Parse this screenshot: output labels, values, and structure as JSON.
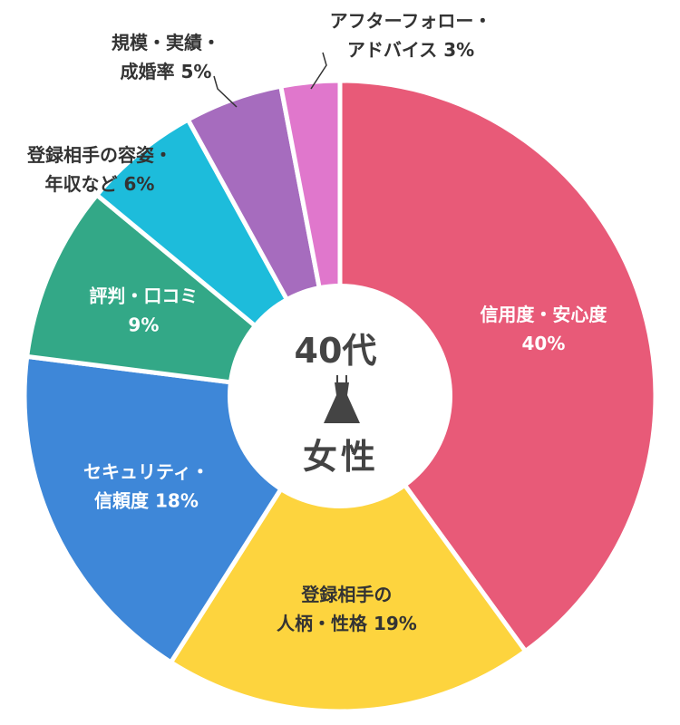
{
  "center": {
    "age": "40代",
    "gender": "女性",
    "icon": "dress-icon"
  },
  "chart_data": {
    "type": "pie",
    "start": "top, clockwise",
    "slices": [
      {
        "label": [
          "信用度・安心度",
          "40%"
        ],
        "value": 40,
        "color": "#E85A78"
      },
      {
        "label": [
          "登録相手の",
          "人柄・性格 19%"
        ],
        "value": 19,
        "color": "#FDD43E"
      },
      {
        "label": [
          "セキュリティ・",
          "信頼度 18%"
        ],
        "value": 18,
        "color": "#3E87D8"
      },
      {
        "label": [
          "評判・口コミ",
          "9%"
        ],
        "value": 9,
        "color": "#33A887"
      },
      {
        "label": [
          "登録相手の容姿・",
          "年収など 6%"
        ],
        "value": 6,
        "color": "#1DBCDB"
      },
      {
        "label": [
          "規模・実績・",
          "成婚率 5%"
        ],
        "value": 5,
        "color": "#A66CBE"
      },
      {
        "label": [
          "アフターフォロー・",
          "アドバイス 3%"
        ],
        "value": 3,
        "color": "#E077CC"
      }
    ]
  }
}
